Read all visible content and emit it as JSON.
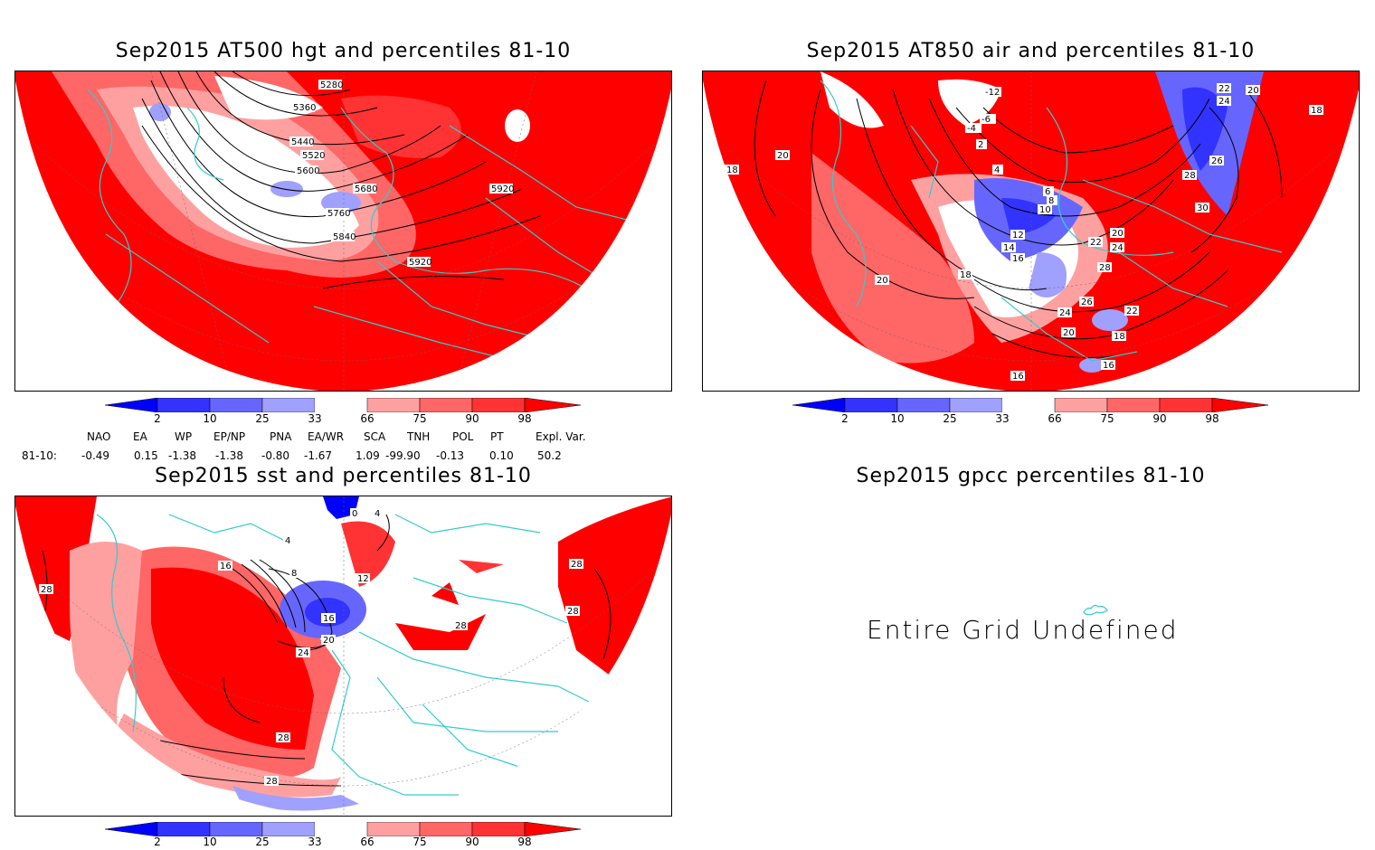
{
  "panels": {
    "top_left": {
      "title": "Sep2015 AT500 hgt and percentiles 81-10",
      "contour_labels": [
        "5280",
        "5360",
        "5440",
        "5520",
        "5600",
        "5680",
        "5760",
        "5840",
        "5920",
        "5920"
      ]
    },
    "top_right": {
      "title": "Sep2015 AT850 air and percentiles 81-10",
      "contour_labels": [
        "18",
        "20",
        "-12",
        "-6",
        "-4",
        "22",
        "24",
        "18",
        "20",
        "2",
        "4",
        "6",
        "8",
        "10",
        "26",
        "28",
        "30",
        "12",
        "14",
        "16",
        "18",
        "22",
        "24",
        "20",
        "28",
        "26",
        "24",
        "22",
        "20",
        "18",
        "16",
        "16",
        "20"
      ]
    },
    "bottom_left": {
      "title": "Sep2015 sst and percentiles 81-10",
      "contour_labels": [
        "0",
        "4",
        "4",
        "8",
        "12",
        "16",
        "16",
        "20",
        "24",
        "28",
        "28",
        "28",
        "28",
        "28",
        "28"
      ]
    },
    "bottom_right": {
      "title": "Sep2015 gpcc percentiles 81-10",
      "message": "Entire Grid Undefined"
    }
  },
  "colorbar": {
    "labels": [
      "2",
      "10",
      "25",
      "33",
      "66",
      "75",
      "90",
      "98"
    ],
    "colors": [
      "#0000ff",
      "#3333ff",
      "#6666ff",
      "#a0a0ff",
      "#ffffff",
      "#ffa0a0",
      "#ff6666",
      "#ff3333",
      "#ff0000"
    ]
  },
  "indices": {
    "headers": [
      "NAO",
      "EA",
      "WP",
      "EP/NP",
      "PNA",
      "EA/WR",
      "SCA",
      "TNH",
      "POL",
      "PT",
      "Expl. Var."
    ],
    "row_label": "81-10:",
    "values": [
      "-0.49",
      "0.15",
      "-1.38",
      "-1.38",
      "-0.80",
      "-1.67",
      "1.09",
      "-99.90",
      "-0.13",
      "0.10",
      "50.2"
    ]
  },
  "colors": {
    "red": "#ff0000",
    "light_red": "#ff6666",
    "pink": "#ffa0a0",
    "blue": "#3333ff",
    "light_blue": "#a0a0ff",
    "coast": "#33cccc"
  }
}
